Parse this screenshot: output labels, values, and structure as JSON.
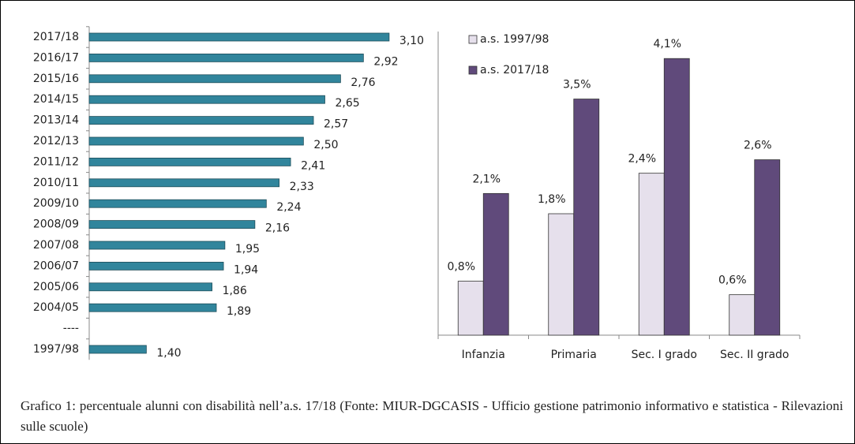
{
  "chart_data": [
    {
      "type": "hbar",
      "categories": [
        "2017/18",
        "2016/17",
        "2015/16",
        "2014/15",
        "2013/14",
        "2012/13",
        "2011/12",
        "2010/11",
        "2009/10",
        "2008/09",
        "2007/08",
        "2006/07",
        "2005/06",
        "2004/05",
        "----",
        "1997/98"
      ],
      "values": [
        3.1,
        2.92,
        2.76,
        2.65,
        2.57,
        2.5,
        2.41,
        2.33,
        2.24,
        2.16,
        1.95,
        1.94,
        1.86,
        1.89,
        null,
        1.4
      ],
      "value_labels": [
        "3,10",
        "2,92",
        "2,76",
        "2,65",
        "2,57",
        "2,50",
        "2,41",
        "2,33",
        "2,24",
        "2,16",
        "1,95",
        "1,94",
        "1,86",
        "1,89",
        null,
        "1,40"
      ],
      "color": "#31859c",
      "xlim": [
        1,
        3.2
      ]
    },
    {
      "type": "grouped_bar",
      "categories": [
        "Infanzia",
        "Primaria",
        "Sec. I grado",
        "Sec. II grado"
      ],
      "series": [
        {
          "name": "a.s. 1997/98",
          "color": "#e6e0ec",
          "values": [
            0.8,
            1.8,
            2.4,
            0.6
          ],
          "value_labels": [
            "0,8%",
            "1,8%",
            "2,4%",
            "0,6%"
          ]
        },
        {
          "name": "a.s. 2017/18",
          "color": "#604a7b",
          "values": [
            2.1,
            3.5,
            4.1,
            2.6
          ],
          "value_labels": [
            "2,1%",
            "3,5%",
            "4,1%",
            "2,6%"
          ]
        }
      ],
      "ylim": [
        0,
        4.5
      ],
      "legend": "top-left"
    }
  ],
  "caption": "Grafico 1: percentuale alunni con disabilità nell’a.s. 17/18 (Fonte: MIUR-DGCASIS - Ufficio gestione patrimonio informativo e statistica - Rilevazioni sulle scuole)"
}
